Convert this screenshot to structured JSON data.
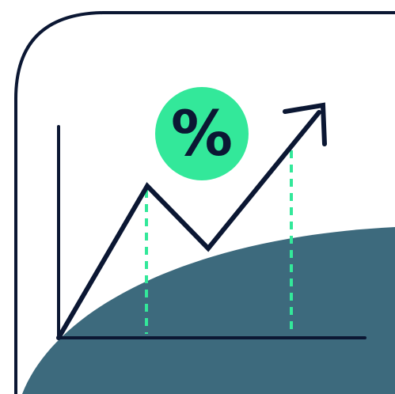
{
  "illustration": {
    "badge_symbol": "%",
    "icon_names": {
      "frame": "rounded-frame-corner",
      "hill": "hill-shape",
      "axes": "chart-axes",
      "trend": "trend-arrow-icon",
      "badge": "percent-badge-icon"
    }
  },
  "colors": {
    "background": "#ffffff",
    "ink": "#0b1733",
    "hill": "#3d6a7d",
    "accent": "#33e89a"
  }
}
